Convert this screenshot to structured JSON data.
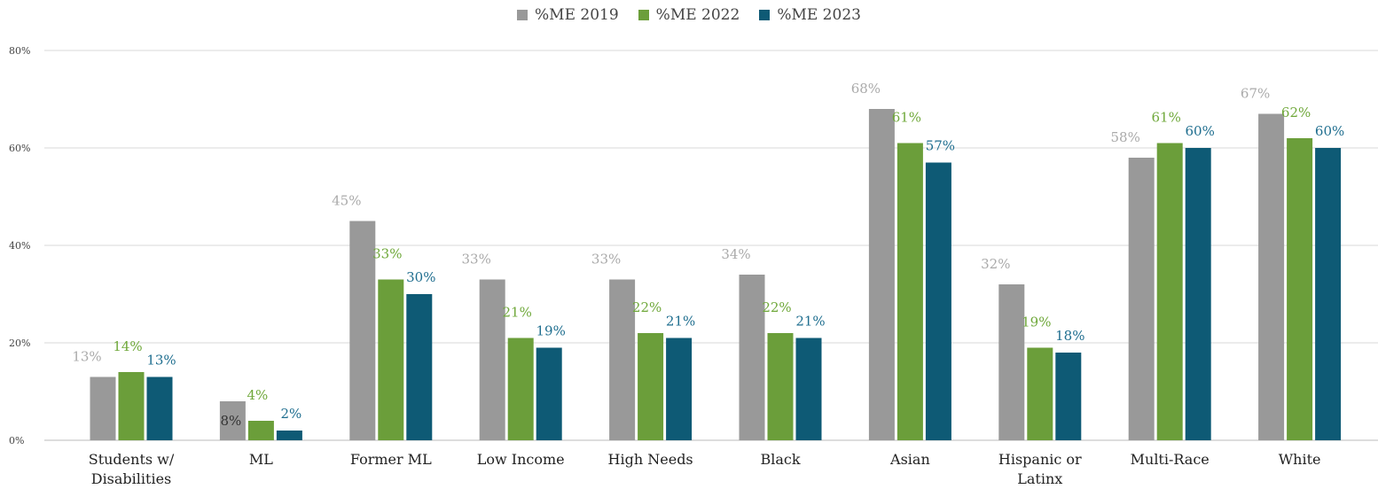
{
  "chart_data": {
    "type": "bar",
    "title": "",
    "xlabel": "",
    "ylabel": "",
    "ylim": [
      0,
      80
    ],
    "yticks": [
      0,
      20,
      40,
      60,
      80
    ],
    "ytick_labels": [
      "0%",
      "20%",
      "40%",
      "60%",
      "80%"
    ],
    "grid": true,
    "legend_position": "top-center",
    "categories": [
      "Students w/ Disabilities",
      "ML",
      "Former ML",
      "Low Income",
      "High Needs",
      "Black",
      "Asian",
      "Hispanic or Latinx",
      "Multi-Race",
      "White"
    ],
    "category_lines": [
      [
        "Students w/",
        "Disabilities"
      ],
      [
        "ML"
      ],
      [
        "Former ML"
      ],
      [
        "Low Income"
      ],
      [
        "High Needs"
      ],
      [
        "Black"
      ],
      [
        "Asian"
      ],
      [
        "Hispanic or",
        "Latinx"
      ],
      [
        "Multi-Race"
      ],
      [
        "White"
      ]
    ],
    "series": [
      {
        "name": "%ME 2019",
        "color": "#999999",
        "label_color": "#aaaaaa",
        "values": [
          13,
          8,
          45,
          33,
          33,
          34,
          68,
          32,
          58,
          67
        ],
        "labels": [
          "13%",
          "8%",
          "45%",
          "33%",
          "33%",
          "34%",
          "68%",
          "32%",
          "58%",
          "67%"
        ]
      },
      {
        "name": "%ME 2022",
        "color": "#6b9e3a",
        "label_color": "#6fa83a",
        "values": [
          14,
          4,
          33,
          21,
          22,
          22,
          61,
          19,
          61,
          62
        ],
        "labels": [
          "14%",
          "4%",
          "33%",
          "21%",
          "22%",
          "22%",
          "61%",
          "19%",
          "61%",
          "62%"
        ]
      },
      {
        "name": "%ME 2023",
        "color": "#0e5a75",
        "label_color": "#1f6e8f",
        "values": [
          13,
          2,
          30,
          19,
          21,
          21,
          57,
          18,
          60,
          60
        ],
        "labels": [
          "13%",
          "2%",
          "30%",
          "19%",
          "21%",
          "21%",
          "57%",
          "18%",
          "60%",
          "60%"
        ]
      }
    ]
  }
}
